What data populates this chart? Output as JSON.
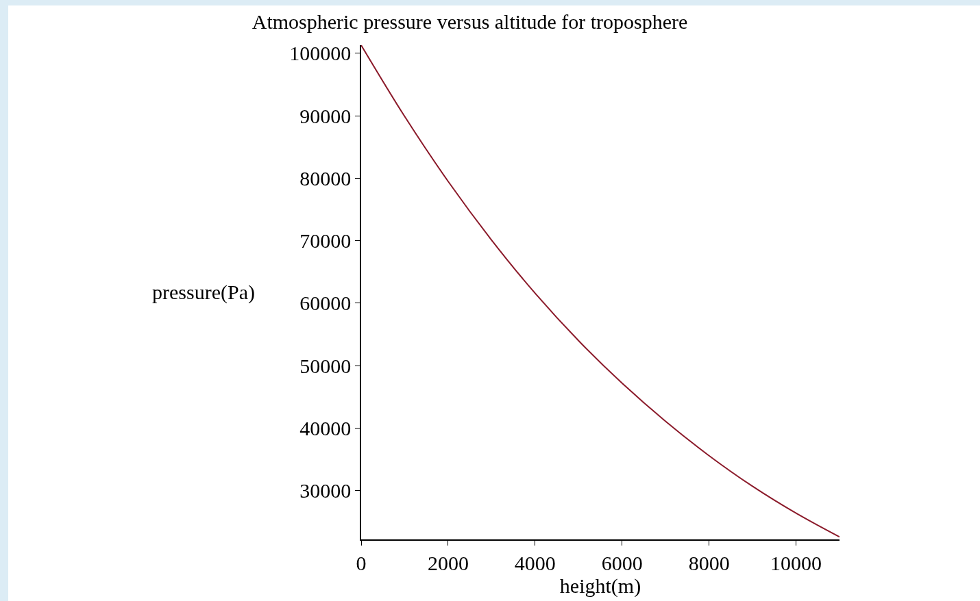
{
  "chart_data": {
    "type": "line",
    "title": "Atmospheric pressure versus altitude for troposphere",
    "xlabel": "height(m)",
    "ylabel": "pressure(Pa)",
    "x": [
      0,
      1000,
      2000,
      3000,
      4000,
      5000,
      6000,
      7000,
      8000,
      9000,
      10000,
      11000
    ],
    "series": [
      {
        "color": "#8b1a2a",
        "values": [
          101300,
          89900,
          79500,
          70100,
          61600,
          54000,
          47200,
          41100,
          35600,
          30700,
          26400,
          22600
        ]
      }
    ],
    "xlim": [
      0,
      11000
    ],
    "xticks": [
      0,
      2000,
      4000,
      6000,
      8000,
      10000
    ],
    "ylim": [
      22200,
      101300
    ],
    "yticks": [
      30000,
      40000,
      50000,
      60000,
      70000,
      80000,
      90000,
      100000
    ],
    "grid": false,
    "line_style": "solid"
  }
}
